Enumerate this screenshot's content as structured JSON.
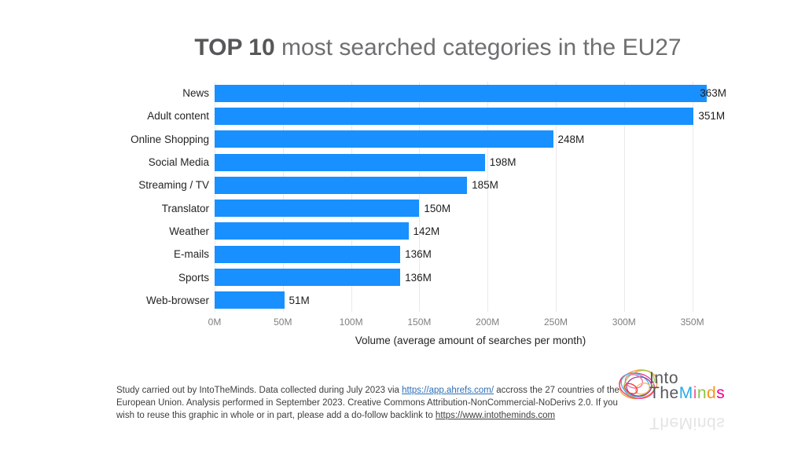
{
  "title": {
    "bold": "TOP 10",
    "rest": " most searched categories in the EU27"
  },
  "chart_data": {
    "type": "bar",
    "orientation": "horizontal",
    "title": "TOP 10 most searched categories in the EU27",
    "categories": [
      "News",
      "Adult content",
      "Online Shopping",
      "Social Media",
      "Streaming / TV",
      "Translator",
      "Weather",
      "E-mails",
      "Sports",
      "Web-browser"
    ],
    "values": [
      363,
      351,
      248,
      198,
      185,
      150,
      142,
      136,
      136,
      51
    ],
    "value_labels": [
      "363M",
      "351M",
      "248M",
      "198M",
      "185M",
      "150M",
      "142M",
      "136M",
      "136M",
      "51M"
    ],
    "xlabel": "Volume (average amount of searches per month)",
    "x_ticks": [
      "0M",
      "50M",
      "100M",
      "150M",
      "200M",
      "250M",
      "300M",
      "350M"
    ],
    "tick_values": [
      0,
      50,
      100,
      150,
      200,
      250,
      300,
      350
    ],
    "xlim": [
      0,
      375
    ],
    "grid": true,
    "legend": "none",
    "bar_color": "#1890ff",
    "unit": "M searches per month"
  },
  "footer": {
    "text1": "Study carried out by IntoTheMinds. Data collected during July 2023 via ",
    "link1": "https://app.ahrefs.com/",
    "text2": " accross the 27 countries of the European Union. Analysis performed in September 2023. Creative Commons Attribution-NonCommercial-NoDerivs 2.0. If you wish to reuse this graphic in whole or in part, please add a do-follow backlink to ",
    "link2": "https://www.intotheminds.com"
  },
  "logo": {
    "line1": "Into",
    "line2_gray": "The",
    "minds_letters": [
      {
        "ch": "M",
        "color": "#29abe2"
      },
      {
        "ch": "i",
        "color": "#ef5ba1"
      },
      {
        "ch": "n",
        "color": "#8dc63f"
      },
      {
        "ch": "d",
        "color": "#f7941d"
      },
      {
        "ch": "s",
        "color": "#ec008c"
      }
    ],
    "mirror_text": "TheMinds"
  }
}
